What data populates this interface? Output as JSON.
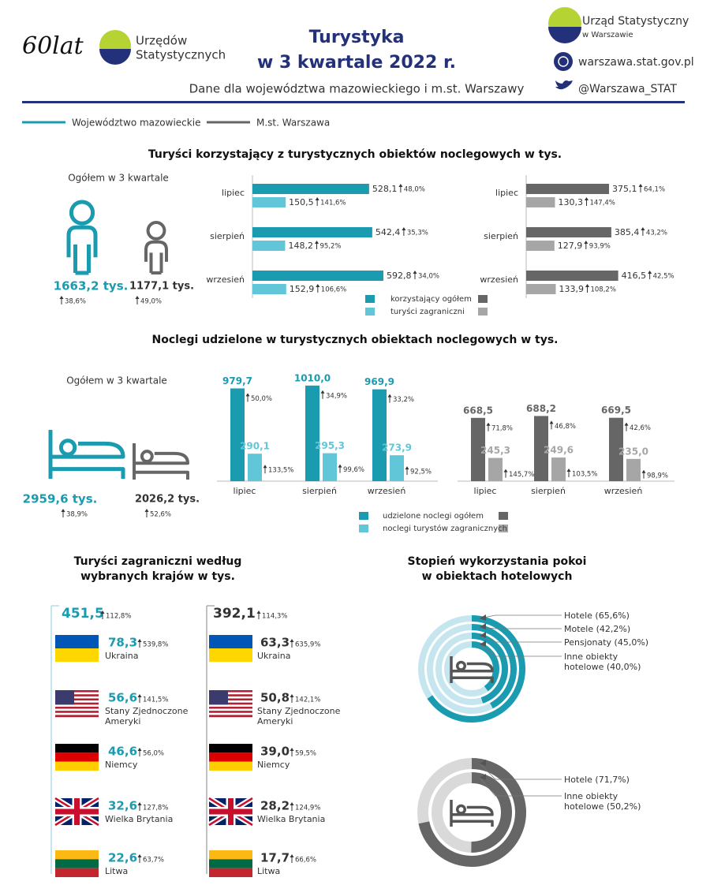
{
  "header": {
    "anniversary": "60lat",
    "offices": [
      "Urzędów",
      "Statystycznych"
    ],
    "title": [
      "Turystyka",
      "w 3 kwartale 2022 r."
    ],
    "subtitle": "Dane dla województwa mazowieckiego i m.st. Warszawy",
    "office": [
      "Urząd Statystyczny",
      "w Warszawie"
    ],
    "website": "warszawa.stat.gov.pl",
    "twitter": "@Warszawa_STAT"
  },
  "legend": [
    {
      "name": "Województwo mazowieckie",
      "color": "#1a9bb0"
    },
    {
      "name": "M.st. Warszawa",
      "color": "#666666"
    }
  ],
  "guests": {
    "title": "Turyści korzystający z turystycznych obiektów noclegowych w tys.",
    "total_label": "Ogółem w 3 kwartale",
    "totals": [
      {
        "value": "1663,2 tys.",
        "change": "38,6%"
      },
      {
        "value": "1177,1 tys.",
        "change": "49,0%"
      }
    ]
  },
  "nights": {
    "title": "Noclegi udzielone w turystycznych obiektach noclegowych w tys.",
    "total_label": "Ogółem w 3 kwartale",
    "totals": [
      {
        "value": "2959,6 tys.",
        "change": "38,9%"
      },
      {
        "value": "2026,2 tys.",
        "change": "52,6%"
      }
    ]
  },
  "countries": {
    "title": [
      "Turyści zagraniczni według",
      "wybranych krajów w tys."
    ],
    "names": [
      "Ukraina",
      "Stany Zjednoczone Ameryki",
      "Niemcy",
      "Wielka Brytania",
      "Litwa"
    ],
    "columns": [
      {
        "total": "451,5",
        "total_change": "112,8%",
        "values": [
          "78,3",
          "56,6",
          "46,6",
          "32,6",
          "22,6"
        ],
        "changes": [
          "539,8%",
          "141,5%",
          "56,0%",
          "127,8%",
          "63,7%"
        ]
      },
      {
        "total": "392,1",
        "total_change": "114,3%",
        "values": [
          "63,3",
          "50,8",
          "39,0",
          "28,2",
          "17,7"
        ],
        "changes": [
          "635,9%",
          "142,1%",
          "59,5%",
          "124,9%",
          "66,6%"
        ]
      }
    ]
  },
  "occupancy": {
    "title": [
      "Stopień wykorzystania pokoi",
      "w obiektach hotelowych"
    ]
  },
  "chart_data": [
    {
      "type": "hbar",
      "categories": [
        "lipiec",
        "sierpień",
        "wrzesień"
      ],
      "series": [
        {
          "name": "korzystający ogółem",
          "color": "#1a9bb0",
          "values": [
            528.1,
            542.4,
            592.8
          ],
          "value_labels": [
            "528,1",
            "542,4",
            "592,8"
          ],
          "changes": [
            "48,0%",
            "35,3%",
            "34,0%"
          ]
        },
        {
          "name": "turyści zagraniczni",
          "color": "#62c6d9",
          "values": [
            150.5,
            148.2,
            152.9
          ],
          "value_labels": [
            "150,5",
            "148,2",
            "152,9"
          ],
          "changes": [
            "141,6%",
            "95,2%",
            "106,6%"
          ]
        }
      ]
    },
    {
      "type": "hbar",
      "categories": [
        "lipiec",
        "sierpień",
        "wrzesień"
      ],
      "series": [
        {
          "color": "#666666",
          "values": [
            375.1,
            385.4,
            416.5
          ],
          "value_labels": [
            "375,1",
            "385,4",
            "416,5"
          ],
          "changes": [
            "64,1%",
            "43,2%",
            "42,5%"
          ]
        },
        {
          "color": "#a6a6a6",
          "values": [
            130.3,
            127.9,
            133.9
          ],
          "value_labels": [
            "130,3",
            "127,9",
            "133,9"
          ],
          "changes": [
            "147,4%",
            "93,9%",
            "108,2%"
          ]
        }
      ]
    },
    {
      "type": "vbar",
      "categories": [
        "lipiec",
        "sierpień",
        "wrzesień"
      ],
      "series": [
        {
          "name": "udzielone noclegi ogółem",
          "color": "#1a9bb0",
          "values": [
            979.7,
            1010.0,
            969.9
          ],
          "value_labels": [
            "979,7",
            "1010,0",
            "969,9"
          ],
          "changes": [
            "50,0%",
            "34,9%",
            "33,2%"
          ]
        },
        {
          "name": "noclegi turystów zagranicznych",
          "color": "#62c6d9",
          "values": [
            290.1,
            295.3,
            273.9
          ],
          "value_labels": [
            "290,1",
            "295,3",
            "273,9"
          ],
          "changes": [
            "133,5%",
            "99,6%",
            "92,5%"
          ]
        }
      ]
    },
    {
      "type": "vbar",
      "categories": [
        "lipiec",
        "sierpień",
        "wrzesień"
      ],
      "series": [
        {
          "color": "#666666",
          "values": [
            668.5,
            688.2,
            669.5
          ],
          "value_labels": [
            "668,5",
            "688,2",
            "669,5"
          ],
          "changes": [
            "71,8%",
            "46,8%",
            "42,6%"
          ]
        },
        {
          "color": "#a6a6a6",
          "values": [
            245.3,
            249.6,
            235.0
          ],
          "value_labels": [
            "245,3",
            "249,6",
            "235,0"
          ],
          "changes": [
            "145,7%",
            "103,5%",
            "98,9%"
          ]
        }
      ]
    },
    {
      "type": "rings",
      "color": "#1a9bb0",
      "track_color": "#c6e6ef",
      "values": [
        65.6,
        42.2,
        45.0,
        40.0
      ],
      "value_labels": [
        "Hotele (65,6%)",
        "Motele (42,2%)",
        "Pensjonaty (45,0%)",
        "Inne obiekty hotelowe (40,0%)"
      ]
    },
    {
      "type": "rings",
      "color": "#666666",
      "track_color": "#d9d9d9",
      "values": [
        71.7,
        50.2
      ],
      "value_labels": [
        "Hotele (71,7%)",
        "Inne obiekty hotelowe (50,2%)"
      ]
    }
  ]
}
